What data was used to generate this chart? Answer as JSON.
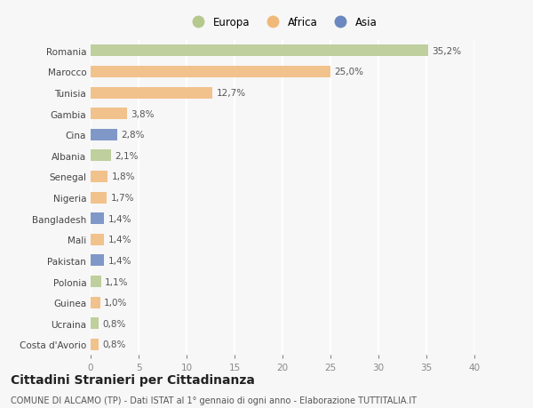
{
  "countries": [
    "Romania",
    "Marocco",
    "Tunisia",
    "Gambia",
    "Cina",
    "Albania",
    "Senegal",
    "Nigeria",
    "Bangladesh",
    "Mali",
    "Pakistan",
    "Polonia",
    "Guinea",
    "Ucraina",
    "Costa d'Avorio"
  ],
  "values": [
    35.2,
    25.0,
    12.7,
    3.8,
    2.8,
    2.1,
    1.8,
    1.7,
    1.4,
    1.4,
    1.4,
    1.1,
    1.0,
    0.8,
    0.8
  ],
  "labels": [
    "35,2%",
    "25,0%",
    "12,7%",
    "3,8%",
    "2,8%",
    "2,1%",
    "1,8%",
    "1,7%",
    "1,4%",
    "1,4%",
    "1,4%",
    "1,1%",
    "1,0%",
    "0,8%",
    "0,8%"
  ],
  "continents": [
    "Europa",
    "Africa",
    "Africa",
    "Africa",
    "Asia",
    "Europa",
    "Africa",
    "Africa",
    "Asia",
    "Africa",
    "Asia",
    "Europa",
    "Africa",
    "Europa",
    "Africa"
  ],
  "colors": {
    "Europa": "#b5c98e",
    "Africa": "#f0b97a",
    "Asia": "#6b88c0"
  },
  "legend_labels": [
    "Europa",
    "Africa",
    "Asia"
  ],
  "legend_colors": [
    "#b5c98e",
    "#f0b97a",
    "#6b88c0"
  ],
  "xlim": [
    0,
    40
  ],
  "xticks": [
    0,
    5,
    10,
    15,
    20,
    25,
    30,
    35,
    40
  ],
  "title": "Cittadini Stranieri per Cittadinanza",
  "subtitle": "COMUNE DI ALCAMO (TP) - Dati ISTAT al 1° gennaio di ogni anno - Elaborazione TUTTITALIA.IT",
  "bg_color": "#f7f7f7",
  "grid_color": "#ffffff",
  "bar_height": 0.55,
  "label_fontsize": 7.5,
  "tick_fontsize": 7.5,
  "title_fontsize": 10,
  "subtitle_fontsize": 7
}
